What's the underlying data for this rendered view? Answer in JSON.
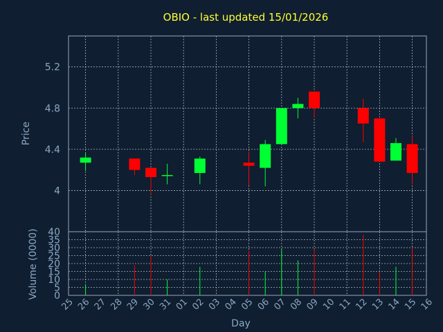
{
  "chart_data": {
    "type": "candlestick",
    "title": "OBIO - last updated 15/01/2026",
    "ylabel": "Price",
    "volume_label": "Volume (0000)",
    "xlabel": "Day",
    "ylim": [
      3.6,
      5.5
    ],
    "yticks": [
      "4",
      "4.4",
      "4.8",
      "5.2"
    ],
    "volume_ylim": [
      0,
      40
    ],
    "volume_ticks": [
      "0",
      "5",
      "10",
      "15",
      "20",
      "25",
      "30",
      "35",
      "40"
    ],
    "categories": [
      "25",
      "26",
      "27",
      "28",
      "29",
      "30",
      "31",
      "01",
      "02",
      "03",
      "04",
      "05",
      "06",
      "07",
      "08",
      "09",
      "10",
      "11",
      "12",
      "13",
      "14",
      "15",
      "16"
    ],
    "colors": {
      "up": "#00ff33",
      "down": "#ff0000",
      "title": "#ffff33",
      "axis_text": "#8ca8c4",
      "background": "#0f1e30"
    },
    "candles": [
      {
        "day": "26",
        "open": 4.27,
        "high": 4.37,
        "low": 4.19,
        "close": 4.32,
        "volume": 7
      },
      {
        "day": "29",
        "open": 4.31,
        "high": 4.31,
        "low": 4.15,
        "close": 4.2,
        "volume": 19
      },
      {
        "day": "30",
        "open": 4.22,
        "high": 4.22,
        "low": 3.96,
        "close": 4.13,
        "volume": 25
      },
      {
        "day": "31",
        "open": 4.14,
        "high": 4.26,
        "low": 4.06,
        "close": 4.15,
        "volume": 10
      },
      {
        "day": "02",
        "open": 4.17,
        "high": 4.33,
        "low": 4.06,
        "close": 4.31,
        "volume": 18
      },
      {
        "day": "05",
        "open": 4.27,
        "high": 4.38,
        "low": 4.05,
        "close": 4.24,
        "volume": 28
      },
      {
        "day": "06",
        "open": 4.22,
        "high": 4.49,
        "low": 4.04,
        "close": 4.45,
        "volume": 15
      },
      {
        "day": "07",
        "open": 4.45,
        "high": 4.8,
        "low": 4.45,
        "close": 4.8,
        "volume": 29
      },
      {
        "day": "08",
        "open": 4.8,
        "high": 4.9,
        "low": 4.7,
        "close": 4.84,
        "volume": 22
      },
      {
        "day": "09",
        "open": 4.96,
        "high": 4.96,
        "low": 4.71,
        "close": 4.8,
        "volume": 29
      },
      {
        "day": "12",
        "open": 4.8,
        "high": 4.89,
        "low": 4.47,
        "close": 4.65,
        "volume": 38
      },
      {
        "day": "13",
        "open": 4.7,
        "high": 4.7,
        "low": 4.28,
        "close": 4.28,
        "volume": 15
      },
      {
        "day": "14",
        "open": 4.29,
        "high": 4.51,
        "low": 4.29,
        "close": 4.46,
        "volume": 18
      },
      {
        "day": "15",
        "open": 4.45,
        "high": 4.53,
        "low": 4.06,
        "close": 4.17,
        "volume": 30
      }
    ]
  }
}
